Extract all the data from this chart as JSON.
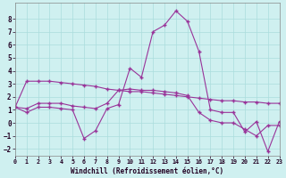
{
  "line1_x": [
    0,
    1,
    2,
    3,
    4,
    5,
    6,
    7,
    8,
    9,
    10,
    11,
    12,
    13,
    14,
    15,
    16,
    17,
    18,
    19,
    20,
    21,
    22,
    23
  ],
  "line1_y": [
    1.2,
    0.8,
    1.2,
    1.2,
    1.1,
    1.0,
    -1.2,
    -0.6,
    1.1,
    1.4,
    4.2,
    3.5,
    7.0,
    7.5,
    8.6,
    7.8,
    5.5,
    1.0,
    0.8,
    0.8,
    -0.7,
    0.1,
    -2.2,
    0.1
  ],
  "line2_x": [
    0,
    1,
    2,
    3,
    4,
    5,
    6,
    7,
    8,
    9,
    10,
    11,
    12,
    13,
    14,
    15,
    16,
    17,
    18,
    19,
    20,
    21,
    22,
    23
  ],
  "line2_y": [
    1.2,
    3.2,
    3.2,
    3.2,
    3.1,
    3.0,
    2.9,
    2.8,
    2.6,
    2.5,
    2.4,
    2.4,
    2.3,
    2.2,
    2.1,
    2.0,
    1.9,
    1.8,
    1.7,
    1.7,
    1.6,
    1.6,
    1.5,
    1.5
  ],
  "line3_x": [
    0,
    1,
    2,
    3,
    4,
    5,
    6,
    7,
    8,
    9,
    10,
    11,
    12,
    13,
    14,
    15,
    16,
    17,
    18,
    19,
    20,
    21,
    22,
    23
  ],
  "line3_y": [
    1.2,
    1.1,
    1.5,
    1.5,
    1.5,
    1.3,
    1.2,
    1.1,
    1.5,
    2.5,
    2.6,
    2.5,
    2.5,
    2.4,
    2.3,
    2.1,
    0.8,
    0.2,
    0.0,
    0.0,
    -0.5,
    -1.0,
    -0.2,
    -0.2
  ],
  "color": "#993399",
  "bg_color": "#cff0f0",
  "grid_color": "#aadddd",
  "xlabel": "Windchill (Refroidissement éolien,°C)",
  "xlim": [
    0,
    23
  ],
  "ylim": [
    -2.5,
    9.2
  ],
  "yticks": [
    -2,
    -1,
    0,
    1,
    2,
    3,
    4,
    5,
    6,
    7,
    8
  ],
  "xticks": [
    0,
    1,
    2,
    3,
    4,
    5,
    6,
    7,
    8,
    9,
    10,
    11,
    12,
    13,
    14,
    15,
    16,
    17,
    18,
    19,
    20,
    21,
    22,
    23
  ]
}
